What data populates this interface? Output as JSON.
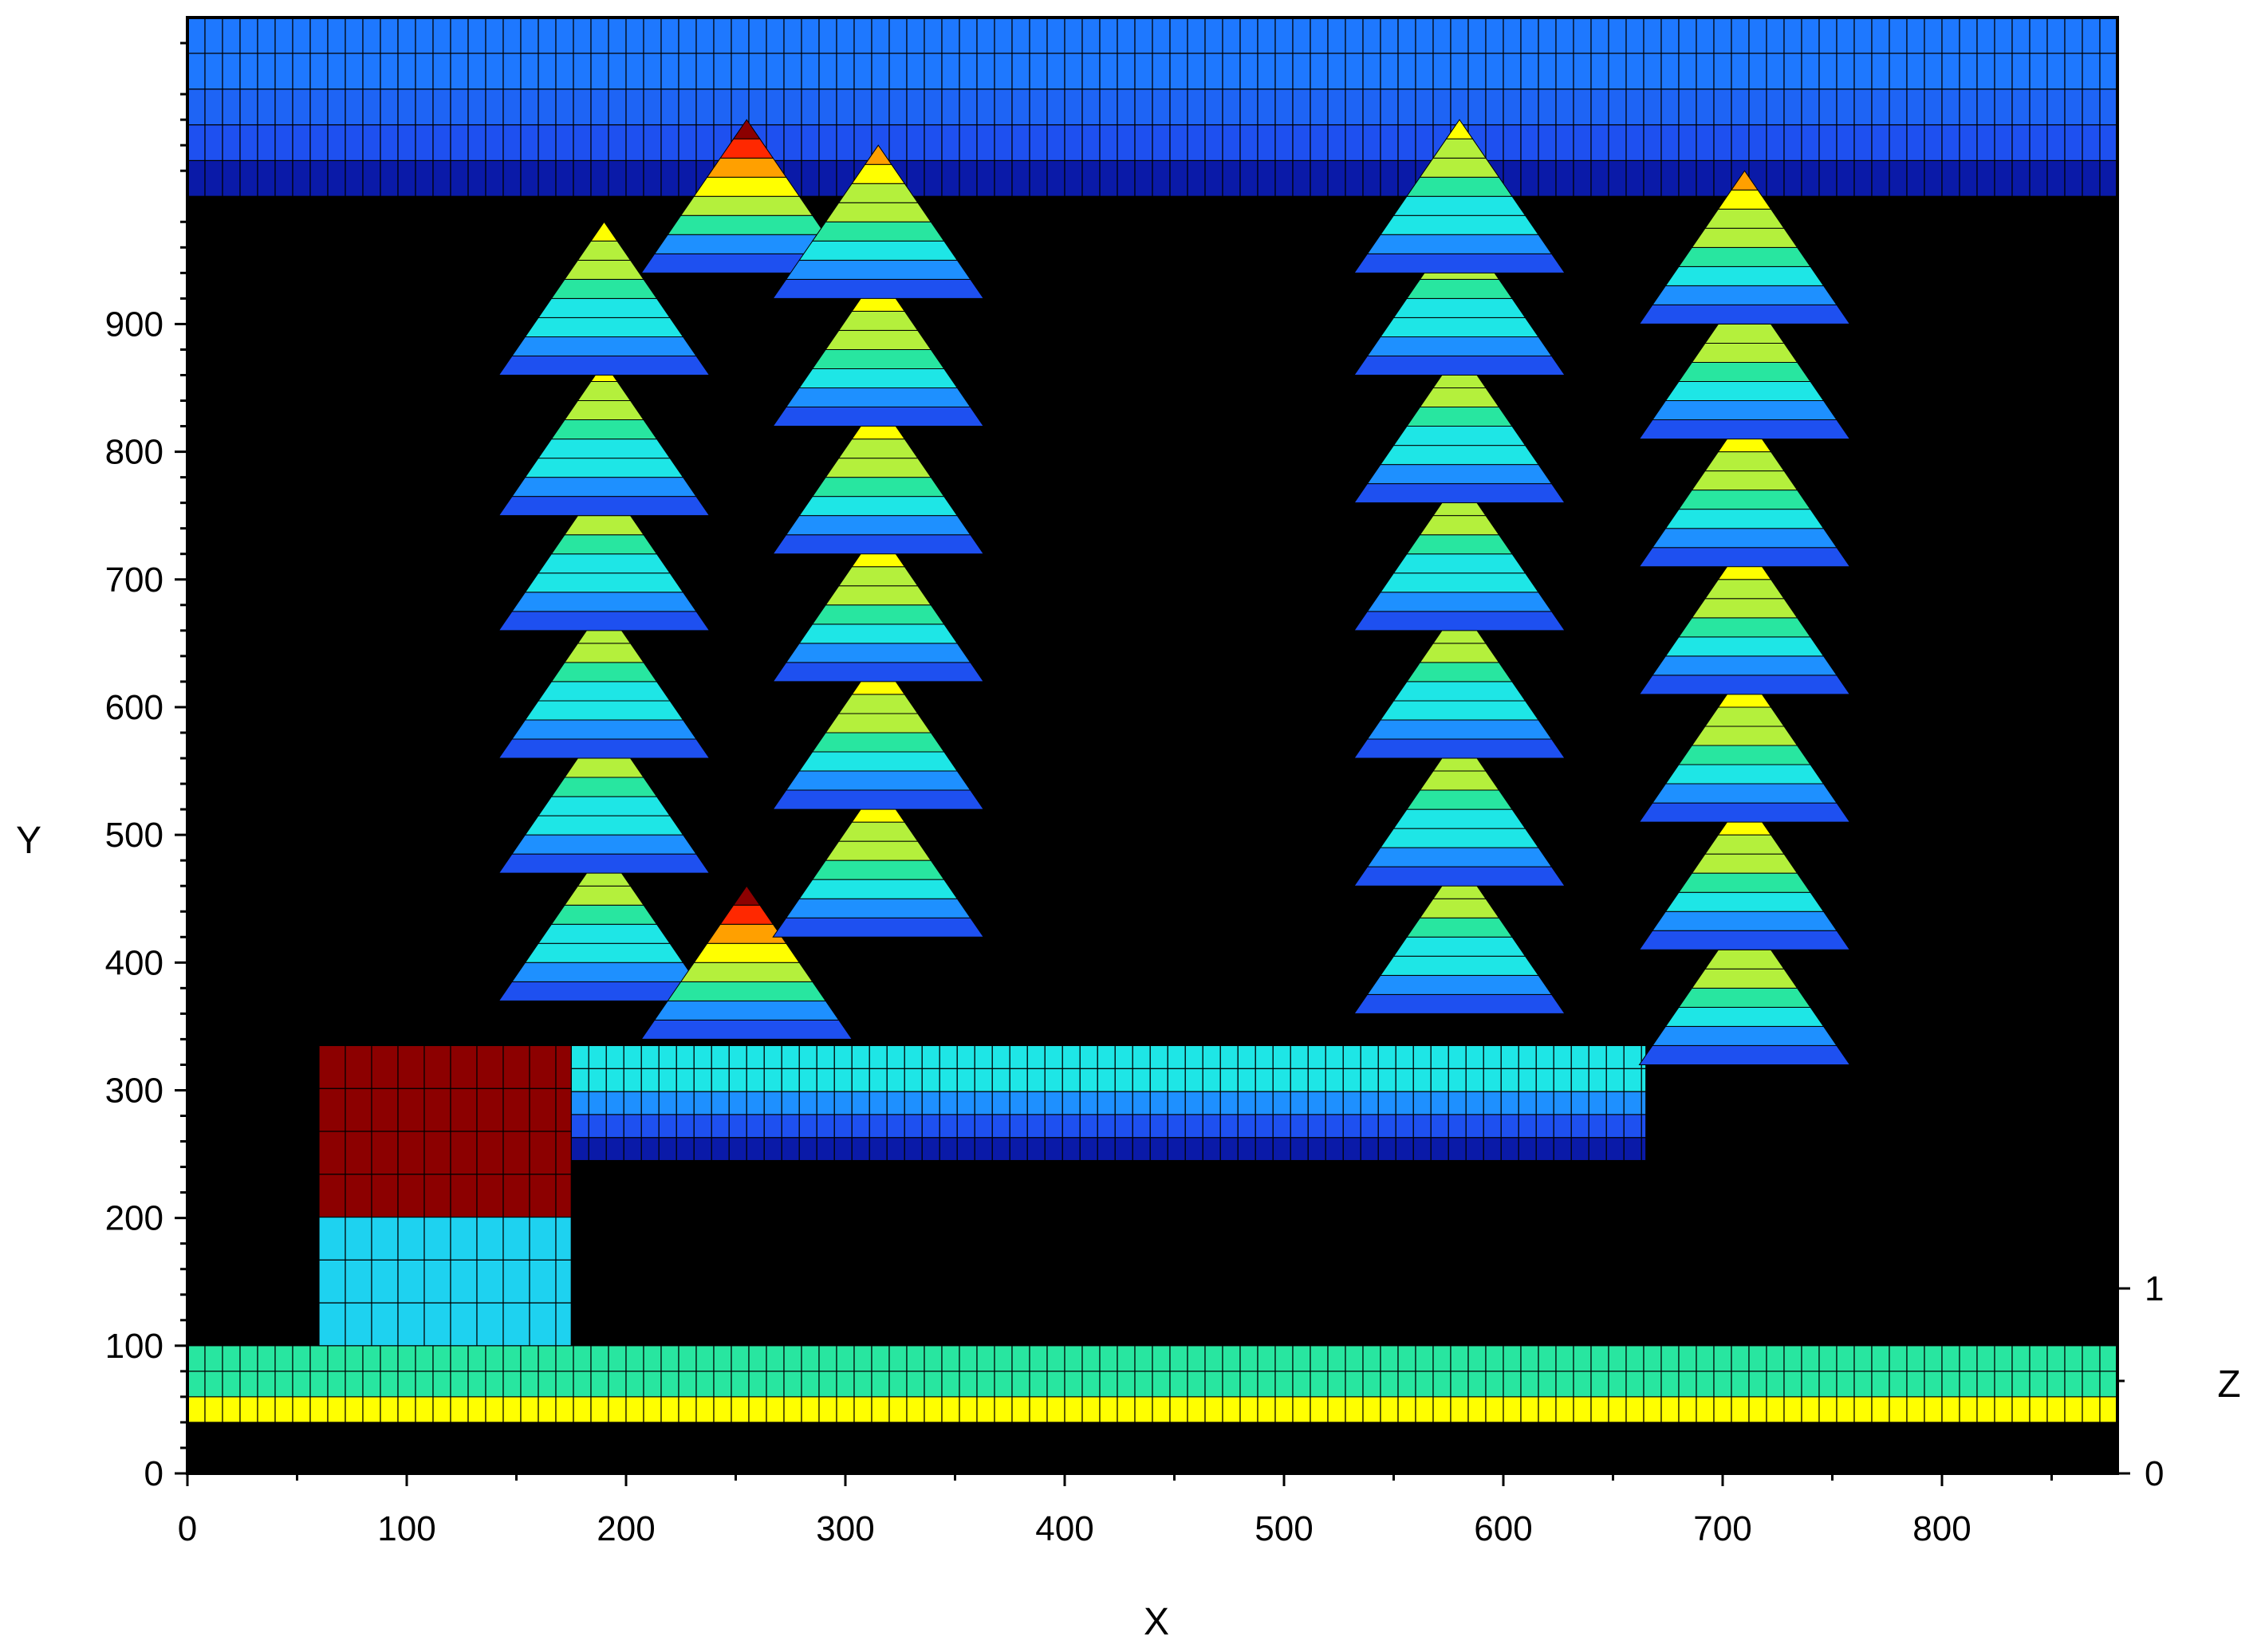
{
  "chart_data": {
    "type": "surface",
    "title": "",
    "xlabel": "X",
    "ylabel": "Y",
    "zlabel": "Z",
    "xlim": [
      0,
      880
    ],
    "ylim": [
      0,
      1140
    ],
    "zlim": [
      0,
      1
    ],
    "xticks": [
      "0",
      "100",
      "200",
      "300",
      "400",
      "500",
      "600",
      "700",
      "800"
    ],
    "yticks": [
      "0",
      "100",
      "200",
      "300",
      "400",
      "500",
      "600",
      "700",
      "800",
      "900"
    ],
    "zticks": [
      "0",
      "1"
    ],
    "grid": false,
    "legend": "none",
    "colormap": [
      "#0a1aa8",
      "#1e50f0",
      "#1e90ff",
      "#1ee6e6",
      "#28e6a0",
      "#b4f03c",
      "#ffff00",
      "#ffa000",
      "#ff2800",
      "#8c0000"
    ],
    "background": "#000000",
    "surface_features": {
      "top_frame_band": {
        "x": [
          0,
          880
        ],
        "y": [
          1000,
          1140
        ],
        "level": 0.3
      },
      "bottom_frame_band": {
        "x": [
          0,
          880
        ],
        "y": [
          40,
          100
        ],
        "level": 0.75
      },
      "horizontal_ridge": {
        "x": [
          175,
          665
        ],
        "y": [
          245,
          335
        ],
        "level": 0.45
      },
      "square_block": {
        "x": [
          60,
          175
        ],
        "y": [
          100,
          335
        ],
        "level": 1.0
      },
      "peak_columns": [
        {
          "x": 190,
          "y_peaks": [
            430,
            530,
            620,
            720,
            810,
            920
          ],
          "level": 0.6
        },
        {
          "x": 255,
          "y_peaks": [
            400,
            1000
          ],
          "level": 1.0
        },
        {
          "x": 315,
          "y_peaks": [
            480,
            580,
            680,
            780,
            880,
            980
          ],
          "level": 0.7
        },
        {
          "x": 580,
          "y_peaks": [
            420,
            520,
            620,
            720,
            820,
            920,
            1000
          ],
          "level": 0.6
        },
        {
          "x": 710,
          "y_peaks": [
            380,
            470,
            570,
            670,
            770,
            870,
            960
          ],
          "level": 0.7
        }
      ]
    }
  }
}
